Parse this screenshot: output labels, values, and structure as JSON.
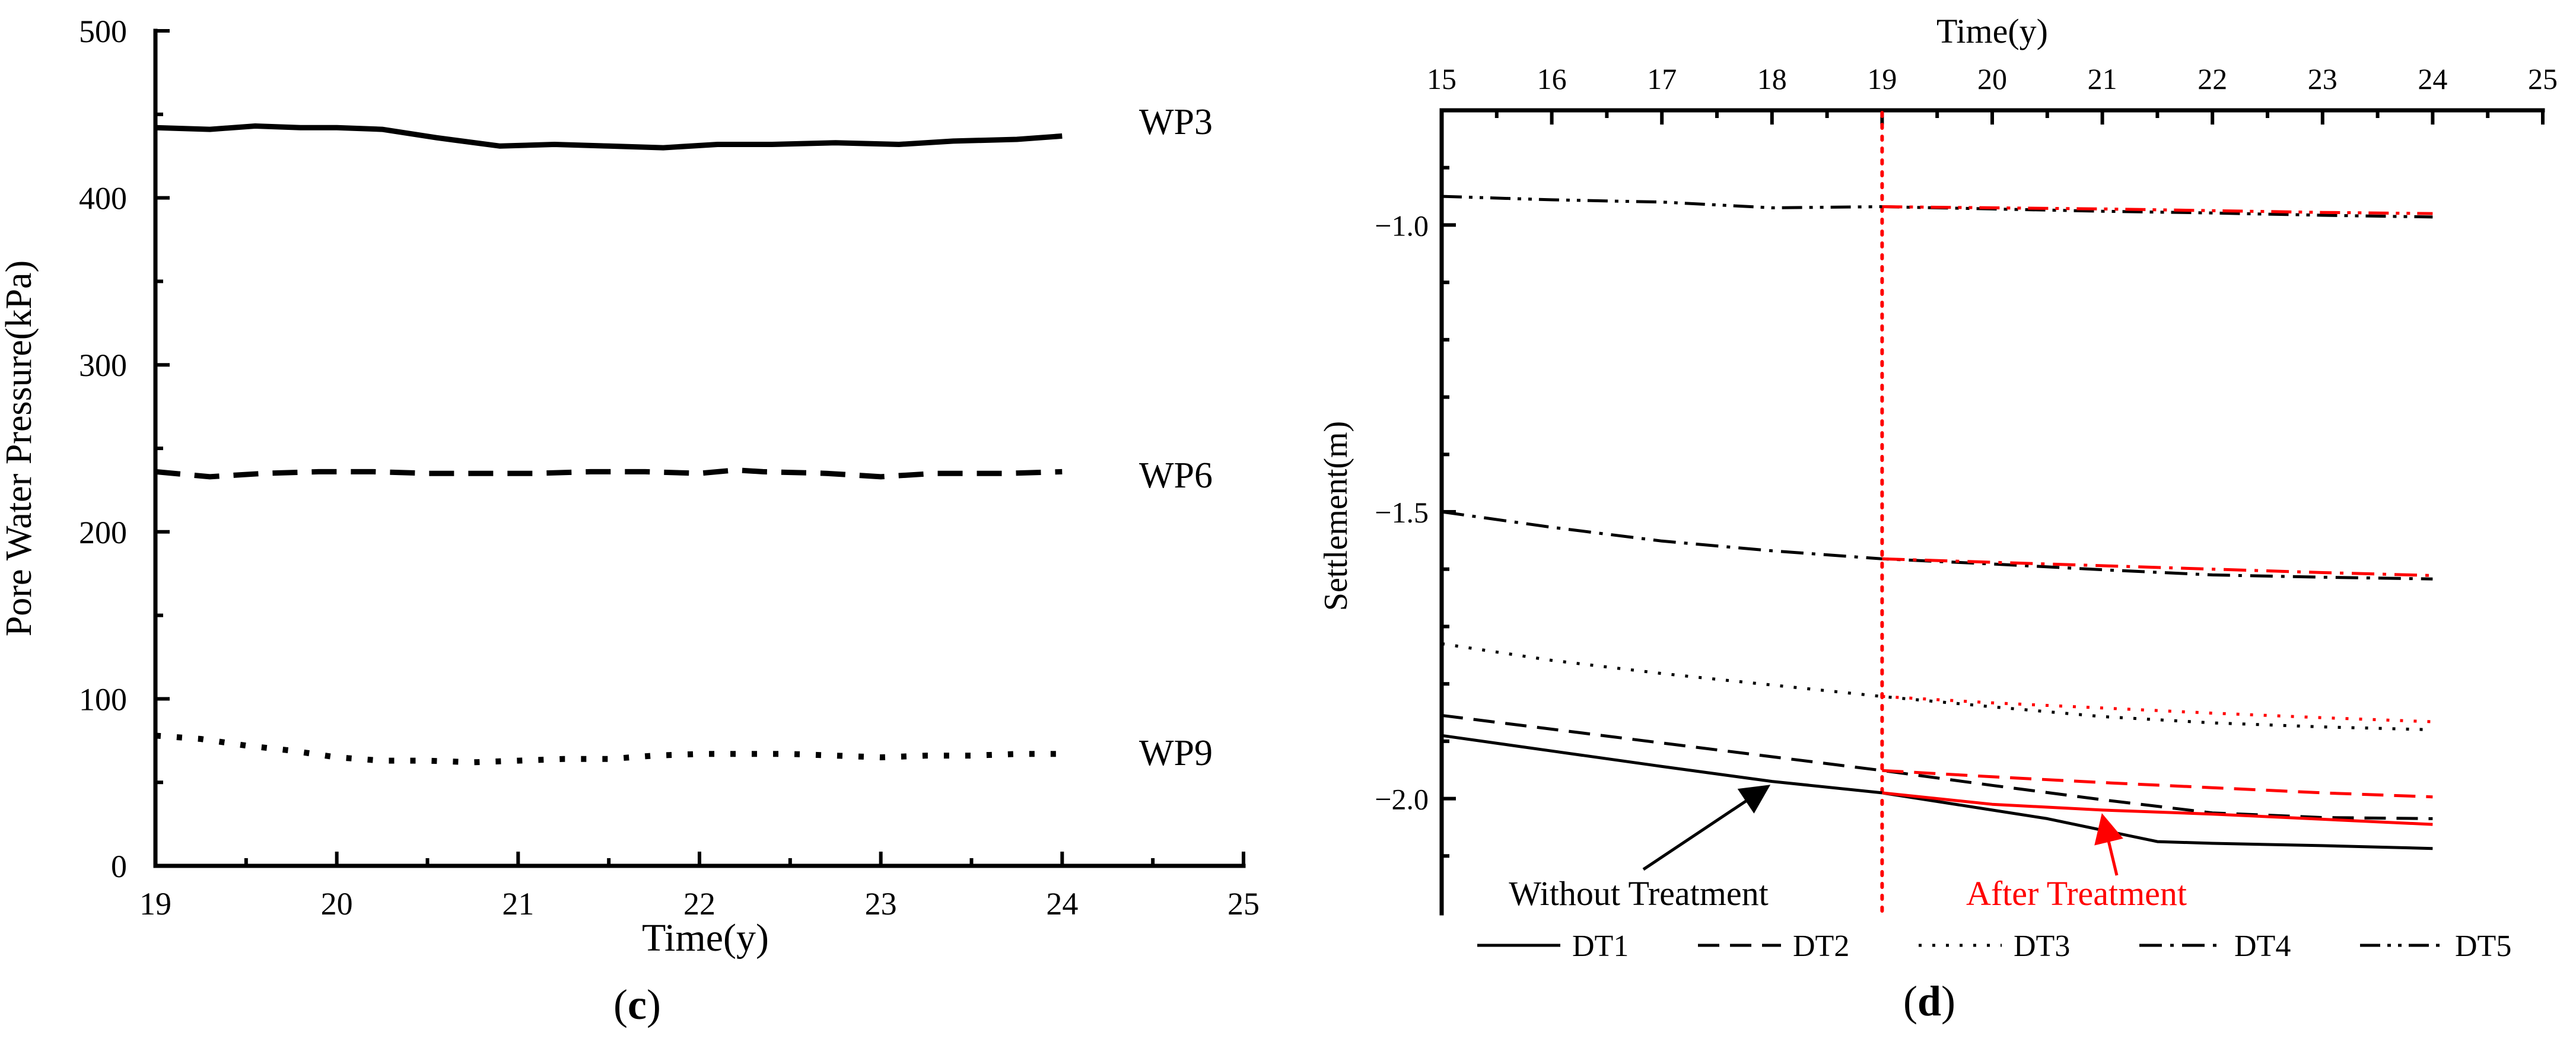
{
  "chart_data": [
    {
      "panel": "c",
      "type": "line",
      "title": "",
      "xlabel": "Time(y)",
      "ylabel": "Pore Water Pressure(kPa)",
      "xlim": [
        19,
        25
      ],
      "ylim": [
        0,
        500
      ],
      "xticks": [
        19,
        20,
        21,
        22,
        23,
        24,
        25
      ],
      "yticks": [
        0,
        100,
        200,
        300,
        400,
        500
      ],
      "series": [
        {
          "name": "WP3",
          "style": "solid",
          "x": [
            19,
            19.3,
            19.55,
            19.8,
            20.0,
            20.25,
            20.55,
            20.9,
            21.2,
            21.5,
            21.8,
            22.1,
            22.4,
            22.75,
            23.1,
            23.4,
            23.75,
            24.0
          ],
          "y": [
            442,
            441,
            443,
            442,
            442,
            441,
            436,
            431,
            432,
            431,
            430,
            432,
            432,
            433,
            432,
            434,
            435,
            437
          ]
        },
        {
          "name": "WP6",
          "style": "dashed",
          "x": [
            19,
            19.3,
            19.6,
            19.9,
            20.2,
            20.5,
            20.8,
            21.1,
            21.4,
            21.7,
            22.0,
            22.2,
            22.35,
            22.7,
            23.0,
            23.3,
            23.7,
            24.0
          ],
          "y": [
            236,
            233,
            235,
            236,
            236,
            235,
            235,
            235,
            236,
            236,
            235,
            237,
            236,
            235,
            233,
            235,
            235,
            236
          ]
        },
        {
          "name": "WP9",
          "style": "dotted",
          "x": [
            19,
            19.25,
            19.5,
            19.75,
            20.0,
            20.25,
            20.5,
            20.75,
            21.0,
            21.25,
            21.5,
            21.75,
            22.0,
            22.25,
            22.5,
            22.75,
            23.0,
            23.25,
            23.5,
            23.75,
            24.0
          ],
          "y": [
            78,
            76,
            72,
            69,
            65,
            63,
            63,
            62,
            63,
            64,
            64,
            66,
            67,
            67,
            67,
            66,
            65,
            66,
            66,
            67,
            67
          ]
        }
      ],
      "labels": [
        {
          "text": "WP3",
          "x": 24.1,
          "y": 443
        },
        {
          "text": "WP6",
          "x": 24.1,
          "y": 232
        },
        {
          "text": "WP9",
          "x": 24.1,
          "y": 66
        }
      ],
      "caption": "(c)"
    },
    {
      "panel": "d",
      "type": "line",
      "title": "",
      "xlabel": "Time(y)",
      "xlabel_position": "top",
      "ylabel": "Settlement(m)",
      "xlim": [
        15,
        25
      ],
      "ylim": [
        -2.2,
        -0.8
      ],
      "xticks": [
        15,
        16,
        17,
        18,
        19,
        20,
        21,
        22,
        23,
        24,
        25
      ],
      "yticks": [
        -2.0,
        -1.5,
        -1.0
      ],
      "ytick_labels": [
        "−2.0",
        "−1.5",
        "−1.0"
      ],
      "vline": {
        "x": 19,
        "color": "#ff0000",
        "style": "dotted"
      },
      "series": [
        {
          "name": "DT1",
          "style": "solid",
          "color": "#000000",
          "x": [
            15,
            16,
            17,
            18,
            19,
            20,
            20.5,
            21,
            21.5,
            22,
            23,
            24
          ],
          "y": [
            -1.89,
            -1.917,
            -1.944,
            -1.97,
            -1.99,
            -2.02,
            -2.035,
            -2.055,
            -2.075,
            -2.078,
            -2.082,
            -2.087
          ]
        },
        {
          "name": "DT2",
          "style": "dashed",
          "color": "#000000",
          "x": [
            15,
            16,
            17,
            18,
            19,
            20,
            21,
            22,
            23,
            24
          ],
          "y": [
            -1.855,
            -1.879,
            -1.903,
            -1.927,
            -1.951,
            -1.977,
            -2.002,
            -2.025,
            -2.033,
            -2.035
          ]
        },
        {
          "name": "DT3",
          "style": "dotted",
          "color": "#000000",
          "x": [
            15,
            16,
            17,
            18,
            19,
            20,
            21,
            22,
            23,
            24
          ],
          "y": [
            -1.73,
            -1.759,
            -1.782,
            -1.802,
            -1.822,
            -1.84,
            -1.857,
            -1.868,
            -1.875,
            -1.88
          ]
        },
        {
          "name": "DT4",
          "style": "dash-dot",
          "color": "#000000",
          "x": [
            15,
            16,
            17,
            18,
            19,
            20,
            21,
            22,
            23,
            24
          ],
          "y": [
            -1.5,
            -1.527,
            -1.551,
            -1.568,
            -1.582,
            -1.591,
            -1.601,
            -1.61,
            -1.614,
            -1.617
          ]
        },
        {
          "name": "DT5",
          "style": "dash-dot-dot",
          "color": "#000000",
          "x": [
            15,
            16,
            17,
            18,
            19,
            20,
            21,
            22,
            23,
            24
          ],
          "y": [
            -0.95,
            -0.956,
            -0.96,
            -0.97,
            -0.968,
            -0.972,
            -0.976,
            -0.979,
            -0.983,
            -0.986
          ]
        },
        {
          "name": "DT1 after treatment",
          "style": "solid",
          "color": "#ff0000",
          "x": [
            19,
            20,
            21,
            22,
            23,
            24
          ],
          "y": [
            -1.99,
            -2.01,
            -2.02,
            -2.027,
            -2.036,
            -2.045
          ]
        },
        {
          "name": "DT2 after treatment",
          "style": "dashed",
          "color": "#ff0000",
          "x": [
            19,
            20,
            21,
            22,
            23,
            24
          ],
          "y": [
            -1.951,
            -1.962,
            -1.972,
            -1.981,
            -1.99,
            -1.997
          ]
        },
        {
          "name": "DT3 after treatment",
          "style": "dotted",
          "color": "#ff0000",
          "x": [
            19,
            20,
            21,
            22,
            23,
            24
          ],
          "y": [
            -1.822,
            -1.833,
            -1.842,
            -1.851,
            -1.859,
            -1.866
          ]
        },
        {
          "name": "DT4 after treatment",
          "style": "dash-dot",
          "color": "#ff0000",
          "x": [
            19,
            20,
            21,
            22,
            23,
            24
          ],
          "y": [
            -1.582,
            -1.588,
            -1.594,
            -1.6,
            -1.606,
            -1.611
          ]
        },
        {
          "name": "DT5 after treatment",
          "style": "dash-dot-dot",
          "color": "#ff0000",
          "x": [
            19,
            20,
            21,
            22,
            23,
            24
          ],
          "y": [
            -0.968,
            -0.97,
            -0.972,
            -0.975,
            -0.978,
            -0.98
          ]
        }
      ],
      "annotations": [
        {
          "text": "Without Treatment",
          "color": "#000000",
          "x": 17.5,
          "y": -2.17,
          "arrow_to": [
            18,
            -1.975
          ]
        },
        {
          "text": "After Treatment",
          "color": "#ff0000",
          "x": 21.4,
          "y": -2.17,
          "arrow_to": [
            21,
            -2.02
          ]
        }
      ],
      "legend": {
        "placement": "bottom",
        "entries": [
          "DT1",
          "DT2",
          "DT3",
          "DT4",
          "DT5"
        ]
      },
      "caption": "(d)"
    }
  ]
}
